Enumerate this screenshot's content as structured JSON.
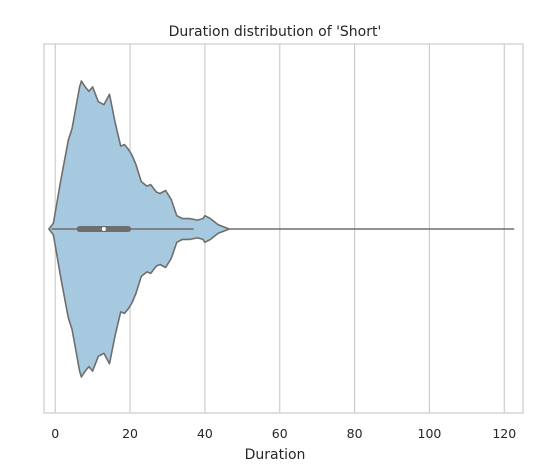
{
  "chart_data": {
    "type": "violin",
    "title": "Duration distribution of 'Short'",
    "xlabel": "Duration",
    "ylabel": "",
    "xlim": [
      -3,
      125
    ],
    "xticks": [
      0,
      20,
      40,
      60,
      80,
      100,
      120
    ],
    "grid": "vertical",
    "colors": {
      "body": "#a6c9df",
      "outline": "#6e6e6e",
      "grid": "#cccccc",
      "text": "#262626"
    },
    "series": [
      {
        "density_profile": [
          [
            -1.7,
            0.0
          ],
          [
            -0.5,
            0.04
          ],
          [
            1.5,
            0.33
          ],
          [
            3.5,
            0.6
          ],
          [
            4.5,
            0.68
          ],
          [
            6.5,
            0.96
          ],
          [
            7.0,
            1.0
          ],
          [
            8.0,
            0.96
          ],
          [
            9.0,
            0.93
          ],
          [
            10.0,
            0.96
          ],
          [
            11.5,
            0.86
          ],
          [
            13.0,
            0.84
          ],
          [
            14.5,
            0.91
          ],
          [
            16.0,
            0.72
          ],
          [
            17.5,
            0.56
          ],
          [
            18.5,
            0.57
          ],
          [
            19.5,
            0.54
          ],
          [
            20.5,
            0.5
          ],
          [
            21.5,
            0.44
          ],
          [
            23.0,
            0.32
          ],
          [
            24.5,
            0.29
          ],
          [
            25.5,
            0.3
          ],
          [
            27.0,
            0.25
          ],
          [
            28.0,
            0.24
          ],
          [
            29.5,
            0.26
          ],
          [
            31.0,
            0.2
          ],
          [
            32.5,
            0.09
          ],
          [
            34.0,
            0.07
          ],
          [
            36.0,
            0.07
          ],
          [
            38.0,
            0.06
          ],
          [
            39.5,
            0.07
          ],
          [
            40.0,
            0.09
          ],
          [
            41.5,
            0.07
          ],
          [
            43.5,
            0.03
          ],
          [
            46.5,
            0.0
          ]
        ],
        "tail_max": 122.5,
        "box": {
          "q1": 6.5,
          "q3": 19.5,
          "median": 13,
          "whisker_low": -1,
          "whisker_high": 37
        }
      }
    ]
  }
}
